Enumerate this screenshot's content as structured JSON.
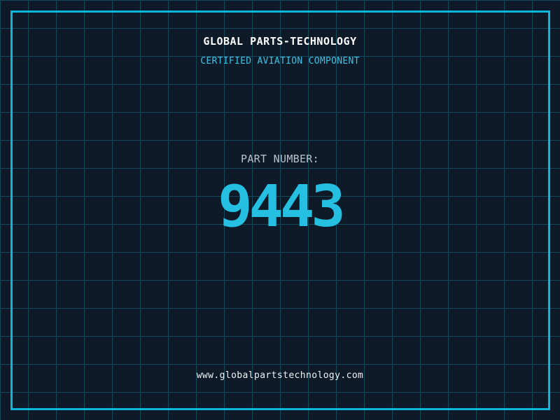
{
  "colors": {
    "background": "#0f1a29",
    "grid-line": "#16485c",
    "frame": "#0db6dc",
    "title": "#ffffff",
    "subtitle": "#3ec1e2",
    "label": "#b9c3cd",
    "part-number": "#25bfe2",
    "url": "#eef2f5"
  },
  "header": {
    "company_name": "GLOBAL PARTS-TECHNOLOGY",
    "tagline": "CERTIFIED AVIATION COMPONENT"
  },
  "part": {
    "label": "PART NUMBER:",
    "number": "9443"
  },
  "footer": {
    "website_url": "www.globalpartstechnology.com"
  }
}
